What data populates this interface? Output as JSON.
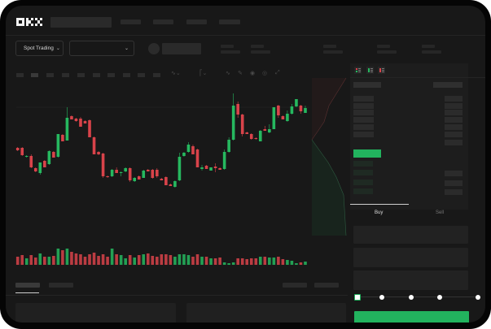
{
  "header": {
    "logo": "OKX",
    "market_selector": "Spot Trading"
  },
  "order_book": {
    "view_icons": [
      "order-book-both-icon",
      "order-book-bids-icon",
      "order-book-asks-icon"
    ]
  },
  "trade_panel": {
    "tabs": [
      {
        "label": "Buy",
        "active": true
      },
      {
        "label": "Sell",
        "active": false
      }
    ],
    "slider_level": 0,
    "submit_color": "#22b35e"
  },
  "colors": {
    "up": "#26b85f",
    "down": "#d8434a",
    "background": "#181818",
    "accent": "#22b35e"
  },
  "chart_data": {
    "type": "candlestick",
    "title": "",
    "grid": false,
    "candles_ohlc": [
      [
        68,
        69,
        64,
        65
      ],
      [
        68,
        69,
        58,
        59
      ],
      [
        57,
        59,
        56,
        58
      ],
      [
        58,
        60,
        43,
        44
      ],
      [
        43,
        44,
        38,
        39
      ],
      [
        37,
        50,
        35,
        50
      ],
      [
        52,
        53,
        44,
        44
      ],
      [
        48,
        65,
        47,
        64
      ],
      [
        63,
        64,
        56,
        56
      ],
      [
        57,
        85,
        56,
        85
      ],
      [
        84,
        85,
        76,
        76
      ],
      [
        77,
        118,
        77,
        105
      ],
      [
        107,
        108,
        103,
        103
      ],
      [
        104,
        105,
        100,
        101
      ],
      [
        104,
        106,
        94,
        94
      ],
      [
        101,
        102,
        98,
        98
      ],
      [
        102,
        103,
        81,
        81
      ],
      [
        81,
        82,
        60,
        60
      ],
      [
        63,
        64,
        59,
        60
      ],
      [
        61,
        62,
        31,
        33
      ],
      [
        33,
        34,
        31,
        32
      ],
      [
        33,
        42,
        32,
        41
      ],
      [
        41,
        44,
        37,
        37
      ],
      [
        37,
        39,
        33,
        38
      ],
      [
        39,
        44,
        38,
        43
      ],
      [
        43,
        44,
        26,
        28
      ],
      [
        27,
        32,
        26,
        31
      ],
      [
        33,
        34,
        29,
        29
      ],
      [
        31,
        41,
        31,
        40
      ],
      [
        41,
        42,
        39,
        39
      ],
      [
        41,
        42,
        30,
        31
      ],
      [
        41,
        43,
        31,
        33
      ],
      [
        30,
        31,
        28,
        28
      ],
      [
        32,
        33,
        22,
        22
      ],
      [
        23,
        24,
        21,
        21
      ],
      [
        20,
        28,
        19,
        27
      ],
      [
        28,
        62,
        27,
        57
      ],
      [
        58,
        63,
        57,
        62
      ],
      [
        63,
        75,
        62,
        72
      ],
      [
        70,
        72,
        60,
        60
      ],
      [
        66,
        67,
        44,
        44
      ],
      [
        42,
        47,
        40,
        44
      ],
      [
        46,
        47,
        42,
        42
      ],
      [
        40,
        44,
        40,
        44
      ],
      [
        45,
        49,
        38,
        43
      ],
      [
        43,
        44,
        41,
        41
      ],
      [
        42,
        66,
        41,
        63
      ],
      [
        63,
        81,
        62,
        78
      ],
      [
        78,
        135,
        77,
        120
      ],
      [
        122,
        125,
        105,
        109
      ],
      [
        109,
        110,
        82,
        85
      ],
      [
        87,
        88,
        85,
        85
      ],
      [
        85,
        86,
        78,
        79
      ],
      [
        80,
        81,
        78,
        79
      ],
      [
        76,
        90,
        76,
        89
      ],
      [
        91,
        95,
        89,
        89
      ],
      [
        87,
        97,
        86,
        91
      ],
      [
        91,
        118,
        91,
        118
      ],
      [
        120,
        121,
        105,
        108
      ],
      [
        107,
        108,
        103,
        103
      ],
      [
        101,
        114,
        100,
        110
      ],
      [
        110,
        122,
        109,
        119
      ],
      [
        119,
        128,
        118,
        128
      ],
      [
        120,
        121,
        110,
        113
      ],
      [
        111,
        120,
        111,
        117
      ]
    ],
    "volumes": [
      10,
      12,
      8,
      12,
      9,
      14,
      10,
      10,
      11,
      20,
      18,
      20,
      16,
      14,
      13,
      10,
      13,
      15,
      11,
      13,
      10,
      20,
      13,
      12,
      8,
      12,
      9,
      12,
      13,
      14,
      11,
      10,
      13,
      13,
      12,
      10,
      13,
      13,
      12,
      10,
      13,
      10,
      10,
      8,
      8,
      9,
      3,
      2,
      3,
      8,
      8,
      7,
      8,
      8,
      10,
      10,
      9,
      9,
      10,
      7,
      6,
      5,
      2,
      3,
      4
    ]
  }
}
